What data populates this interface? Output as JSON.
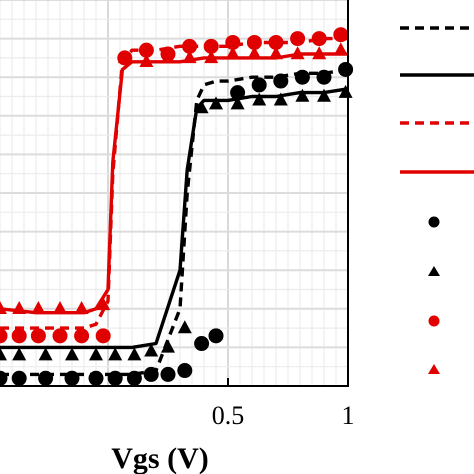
{
  "chart_data": {
    "type": "line",
    "xlabel": "Vgs (V)",
    "ylabel": "",
    "xlim": [
      -0.45,
      1.0
    ],
    "ylim": [
      0,
      1
    ],
    "x_ticks": [
      {
        "value": 0.5,
        "label": "0.5"
      },
      {
        "value": 1.0,
        "label": "1"
      }
    ],
    "grid": true,
    "legend_position": "right",
    "series": [
      {
        "style": "dashed-line",
        "color": "#000000",
        "x": [
          -0.45,
          -0.3,
          -0.2,
          -0.1,
          0.0,
          0.1,
          0.2,
          0.3,
          0.33,
          0.37,
          0.4,
          0.45,
          0.5,
          0.6,
          0.7,
          0.8,
          0.9,
          1.0
        ],
        "y": [
          0.03,
          0.03,
          0.03,
          0.03,
          0.03,
          0.03,
          0.04,
          0.2,
          0.5,
          0.74,
          0.78,
          0.79,
          0.79,
          0.8,
          0.8,
          0.81,
          0.81,
          0.82
        ]
      },
      {
        "style": "solid-line",
        "color": "#000000",
        "x": [
          -0.45,
          -0.3,
          -0.2,
          -0.1,
          0.0,
          0.1,
          0.2,
          0.3,
          0.33,
          0.37,
          0.4,
          0.45,
          0.5,
          0.6,
          0.7,
          0.8,
          0.9,
          1.0
        ],
        "y": [
          0.1,
          0.1,
          0.1,
          0.1,
          0.1,
          0.1,
          0.11,
          0.3,
          0.56,
          0.72,
          0.74,
          0.74,
          0.74,
          0.75,
          0.75,
          0.76,
          0.76,
          0.77
        ]
      },
      {
        "style": "dashed-line",
        "color": "#e00000",
        "x": [
          -0.45,
          -0.3,
          -0.2,
          -0.1,
          -0.05,
          0.0,
          0.02,
          0.06,
          0.1,
          0.15,
          0.2,
          0.3,
          0.4,
          0.5,
          0.6,
          0.7,
          0.8,
          0.9,
          1.0
        ],
        "y": [
          0.15,
          0.15,
          0.15,
          0.15,
          0.16,
          0.22,
          0.55,
          0.84,
          0.87,
          0.87,
          0.87,
          0.88,
          0.88,
          0.88,
          0.89,
          0.89,
          0.89,
          0.9,
          0.9
        ]
      },
      {
        "style": "solid-line",
        "color": "#e00000",
        "x": [
          -0.45,
          -0.3,
          -0.2,
          -0.1,
          -0.05,
          0.0,
          0.02,
          0.06,
          0.1,
          0.15,
          0.2,
          0.3,
          0.4,
          0.5,
          0.6,
          0.7,
          0.8,
          0.9,
          1.0
        ],
        "y": [
          0.2,
          0.19,
          0.19,
          0.19,
          0.2,
          0.25,
          0.58,
          0.82,
          0.84,
          0.84,
          0.84,
          0.84,
          0.85,
          0.85,
          0.85,
          0.85,
          0.86,
          0.86,
          0.86
        ]
      },
      {
        "style": "circle-markers",
        "color": "#000000",
        "x": [
          -0.45,
          -0.37,
          -0.26,
          -0.15,
          -0.05,
          0.03,
          0.11,
          0.18,
          0.25,
          0.32,
          0.39,
          0.45,
          0.54,
          0.63,
          0.72,
          0.81,
          0.9,
          0.99
        ],
        "y": [
          0.02,
          0.02,
          0.02,
          0.02,
          0.02,
          0.02,
          0.02,
          0.03,
          0.03,
          0.04,
          0.11,
          0.13,
          0.76,
          0.78,
          0.79,
          0.8,
          0.8,
          0.82
        ]
      },
      {
        "style": "triangle-markers",
        "color": "#000000",
        "x": [
          -0.45,
          -0.37,
          -0.26,
          -0.15,
          -0.05,
          0.03,
          0.11,
          0.18,
          0.25,
          0.32,
          0.39,
          0.45,
          0.54,
          0.63,
          0.72,
          0.81,
          0.9,
          0.99
        ],
        "y": [
          0.08,
          0.08,
          0.08,
          0.08,
          0.08,
          0.08,
          0.08,
          0.09,
          0.1,
          0.15,
          0.72,
          0.73,
          0.73,
          0.74,
          0.74,
          0.75,
          0.75,
          0.76
        ]
      },
      {
        "style": "circle-markers",
        "color": "#e00000",
        "x": [
          -0.45,
          -0.37,
          -0.29,
          -0.2,
          -0.11,
          -0.02,
          0.07,
          0.16,
          0.25,
          0.34,
          0.43,
          0.52,
          0.61,
          0.7,
          0.79,
          0.88,
          0.97
        ],
        "y": [
          0.13,
          0.13,
          0.13,
          0.13,
          0.13,
          0.13,
          0.85,
          0.87,
          0.86,
          0.88,
          0.88,
          0.89,
          0.89,
          0.89,
          0.9,
          0.9,
          0.91
        ]
      },
      {
        "style": "triangle-markers",
        "color": "#e00000",
        "x": [
          -0.45,
          -0.37,
          -0.29,
          -0.2,
          -0.11,
          -0.02,
          0.07,
          0.16,
          0.25,
          0.34,
          0.43,
          0.52,
          0.61,
          0.7,
          0.79,
          0.88,
          0.97
        ],
        "y": [
          0.2,
          0.2,
          0.2,
          0.2,
          0.2,
          0.21,
          0.85,
          0.84,
          0.85,
          0.85,
          0.85,
          0.86,
          0.86,
          0.86,
          0.86,
          0.86,
          0.87
        ]
      }
    ]
  }
}
